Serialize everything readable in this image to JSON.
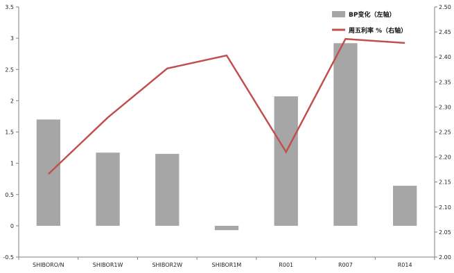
{
  "chart_data": {
    "type": "bar",
    "categories": [
      "SHIBORO/N",
      "SHIBOR1W",
      "SHIBOR2W",
      "SHIBOR1M",
      "R001",
      "R007",
      "R014"
    ],
    "series": [
      {
        "name": "BP变化（左轴）",
        "type": "bar",
        "axis": "left",
        "color": "#a6a6a6",
        "values": [
          1.7,
          1.17,
          1.15,
          -0.07,
          2.07,
          2.92,
          0.64
        ]
      },
      {
        "name": "周五利率 %（右轴）",
        "type": "line",
        "axis": "right",
        "color": "#c0504d",
        "values": [
          2.166,
          2.279,
          2.377,
          2.403,
          2.21,
          2.436,
          2.428
        ]
      }
    ],
    "y_left": {
      "ylim": [
        -0.5,
        3.5
      ],
      "ticks": [
        -0.5,
        0,
        0.5,
        1,
        1.5,
        2,
        2.5,
        3,
        3.5
      ],
      "tick_labels": [
        "-0.5",
        "0",
        "0.5",
        "1",
        "1.5",
        "2",
        "2.5",
        "3",
        "3.5"
      ]
    },
    "y_right": {
      "ylim": [
        2.0,
        2.5
      ],
      "ticks": [
        2.0,
        2.05,
        2.1,
        2.15,
        2.2,
        2.25,
        2.3,
        2.35,
        2.4,
        2.45,
        2.5
      ],
      "tick_labels": [
        "2.00",
        "2.05",
        "2.10",
        "2.15",
        "2.20",
        "2.25",
        "2.30",
        "2.35",
        "2.40",
        "2.45",
        "2.50"
      ]
    },
    "legend_position": "top-right",
    "grid": false
  }
}
